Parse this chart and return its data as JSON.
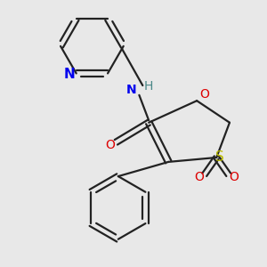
{
  "bg_color": "#e8e8e8",
  "bond_color": "#222222",
  "bond_width": 1.6,
  "N_color": "#0000ee",
  "H_color": "#4a8888",
  "O_color": "#dd0000",
  "S_color": "#bbbb00",
  "figsize": [
    3.0,
    3.0
  ],
  "dpi": 100,
  "xlim": [
    -2.8,
    3.0
  ],
  "ylim": [
    -3.2,
    2.8
  ]
}
